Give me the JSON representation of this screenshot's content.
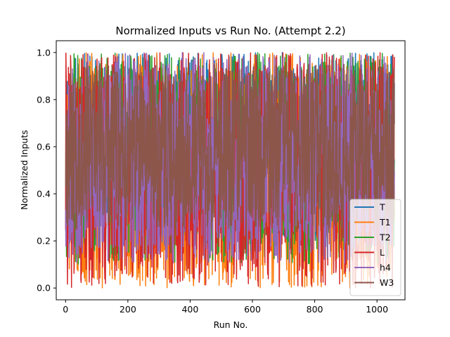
{
  "chart_data": {
    "type": "line",
    "title": "Normalized Inputs vs Run No. (Attempt 2.2)",
    "xlabel": "Run No.",
    "ylabel": "Normalized Inputs",
    "xlim": [
      -30,
      1090
    ],
    "ylim": [
      -0.05,
      1.05
    ],
    "xticks": [
      0,
      200,
      400,
      600,
      800,
      1000
    ],
    "yticks": [
      0.0,
      0.2,
      0.4,
      0.6,
      0.8,
      1.0
    ],
    "ytick_labels": [
      "0.0",
      "0.2",
      "0.4",
      "0.6",
      "0.8",
      "1.0"
    ],
    "n_runs": 1057,
    "grid": false,
    "legend_position": "lower-right",
    "series": [
      {
        "name": "T",
        "color": "#1f77b4",
        "seed": 11,
        "mean": 0.6,
        "spread": 0.4
      },
      {
        "name": "T1",
        "color": "#ff7f0e",
        "seed": 23,
        "mean": 0.5,
        "spread": 0.5
      },
      {
        "name": "T2",
        "color": "#2ca02c",
        "seed": 37,
        "mean": 0.55,
        "spread": 0.45
      },
      {
        "name": "L",
        "color": "#d62728",
        "seed": 41,
        "mean": 0.5,
        "spread": 0.5
      },
      {
        "name": "h4",
        "color": "#9467bd",
        "seed": 53,
        "mean": 0.55,
        "spread": 0.45
      },
      {
        "name": "W3",
        "color": "#8c564b",
        "seed": 67,
        "mean": 0.6,
        "spread": 0.35
      }
    ]
  }
}
